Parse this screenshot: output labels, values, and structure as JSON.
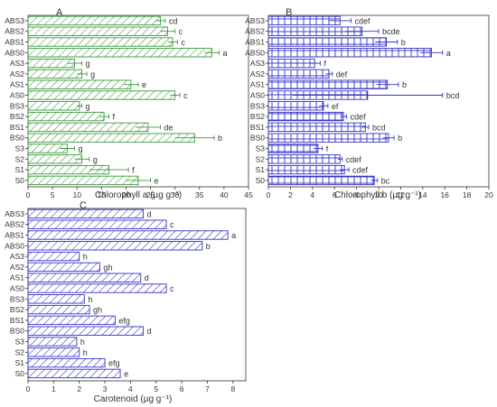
{
  "chart_data": [
    {
      "type": "bar",
      "orientation": "horizontal",
      "panel_label": "A",
      "xlabel": "Chlorophyll a (µg g⁻¹)",
      "xlim": [
        0,
        45
      ],
      "xticks": [
        "0",
        "5",
        "10",
        "15",
        "20",
        "25",
        "30",
        "35",
        "40",
        "45"
      ],
      "categories": [
        "ABS3",
        "ABS2",
        "ABS1",
        "ABS0",
        "AS3",
        "AS2",
        "AS1",
        "AS0",
        "BS3",
        "BS2",
        "BS1",
        "BS0",
        "S3",
        "S2",
        "S1",
        "S0"
      ],
      "values": [
        27.0,
        28.5,
        29.5,
        37.5,
        9.5,
        11.0,
        21.0,
        30.0,
        10.5,
        15.5,
        24.5,
        34.0,
        8.0,
        11.0,
        16.5,
        22.5
      ],
      "errors": [
        1.0,
        1.5,
        1.0,
        1.5,
        1.5,
        1.0,
        1.5,
        1.0,
        0.5,
        1.0,
        2.5,
        4.0,
        1.5,
        1.5,
        4.0,
        2.5
      ],
      "letters": [
        "cd",
        "c",
        "c",
        "a",
        "g",
        "g",
        "e",
        "c",
        "g",
        "f",
        "de",
        "b",
        "g",
        "g",
        "f",
        "e"
      ],
      "hatch_color": "#3a9a3a",
      "grid": false
    },
    {
      "type": "bar",
      "orientation": "horizontal",
      "panel_label": "B",
      "xlabel": "Chlorophyll b (µg g⁻¹)",
      "xlim": [
        0,
        20
      ],
      "xticks": [
        "0",
        "2",
        "4",
        "6",
        "8",
        "10",
        "12",
        "14",
        "16",
        "18",
        "20"
      ],
      "categories": [
        "ABS3",
        "ABS2",
        "ABS1",
        "ABS0",
        "AS3",
        "AS2",
        "AS1",
        "AS0",
        "BS3",
        "BS2",
        "BS1",
        "BS0",
        "S3",
        "S2",
        "S1",
        "S0"
      ],
      "values": [
        6.5,
        8.5,
        10.7,
        14.8,
        4.2,
        5.5,
        10.8,
        9.0,
        5.0,
        6.8,
        8.8,
        10.9,
        4.5,
        6.5,
        6.9,
        9.6
      ],
      "errors": [
        1.0,
        1.5,
        1.0,
        1.0,
        0.5,
        0.3,
        1.0,
        6.8,
        0.4,
        0.3,
        0.3,
        0.5,
        0.4,
        0.2,
        0.4,
        0.3
      ],
      "letters": [
        "cdef",
        "bcde",
        "b",
        "a",
        "f",
        "def",
        "b",
        "bcd",
        "ef",
        "cdef",
        "bcd",
        "b",
        "f",
        "cdef",
        "cdef",
        "bc"
      ],
      "hatch_color": "#3232c8",
      "grid": false
    },
    {
      "type": "bar",
      "orientation": "horizontal",
      "panel_label": "C",
      "xlabel": "Carotenoid (µg g⁻¹)",
      "xlim": [
        0,
        8.5
      ],
      "xticks": [
        "0",
        "1",
        "2",
        "3",
        "4",
        "5",
        "6",
        "7",
        "8"
      ],
      "categories": [
        "ABS3",
        "ABS2",
        "ABS1",
        "ABS0",
        "AS3",
        "AS2",
        "AS1",
        "AS0",
        "BS3",
        "BS2",
        "BS1",
        "BS0",
        "S3",
        "S2",
        "S1",
        "S0"
      ],
      "values": [
        4.5,
        5.4,
        7.8,
        6.8,
        2.0,
        2.8,
        4.4,
        5.4,
        2.2,
        2.4,
        3.4,
        4.5,
        1.9,
        2.0,
        3.0,
        3.6
      ],
      "letters": [
        "d",
        "c",
        "a",
        "b",
        "h",
        "gh",
        "d",
        "c",
        "h",
        "gh",
        "efg",
        "d",
        "h",
        "h",
        "efg",
        "e"
      ],
      "hatch_color": "#3232c8",
      "grid": false
    }
  ]
}
